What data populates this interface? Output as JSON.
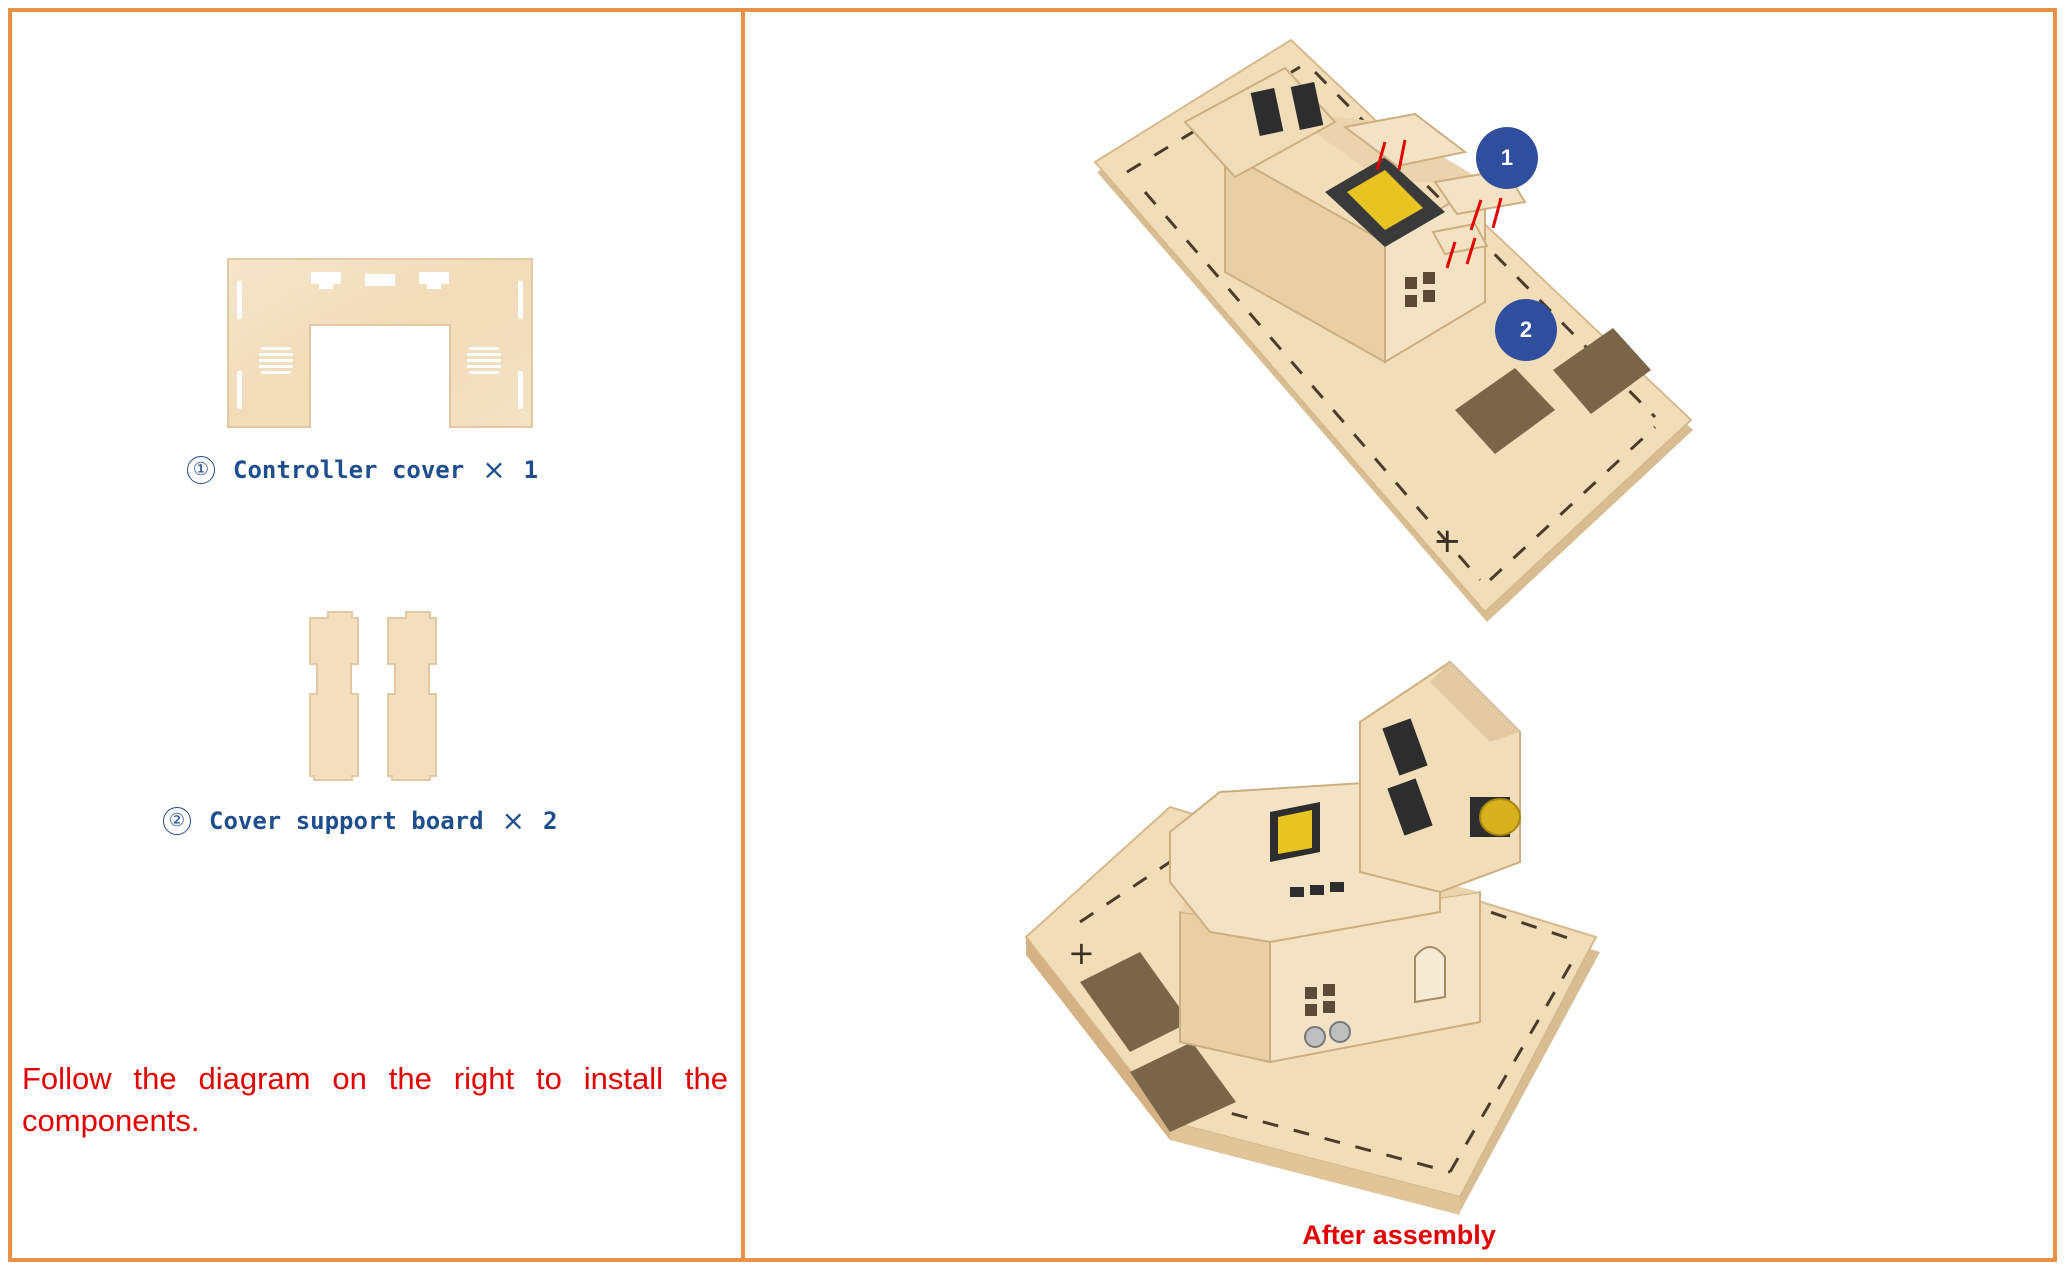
{
  "parts": [
    {
      "number": "①",
      "name": "Controller cover",
      "times": "×",
      "quantity": "1"
    },
    {
      "number": "②",
      "name": "Cover support board",
      "times": "×",
      "quantity": "2"
    }
  ],
  "instruction": "Follow the diagram on the right to install the components.",
  "callouts": [
    "1",
    "2"
  ],
  "caption": "After assembly",
  "colors": {
    "frame": "#e8914a",
    "label_blue": "#1f4e8c",
    "instruction_red": "#e30000",
    "badge_blue": "#2f4f9e",
    "wood": "#f3dfc0",
    "wood_dark": "#d9bd92"
  }
}
